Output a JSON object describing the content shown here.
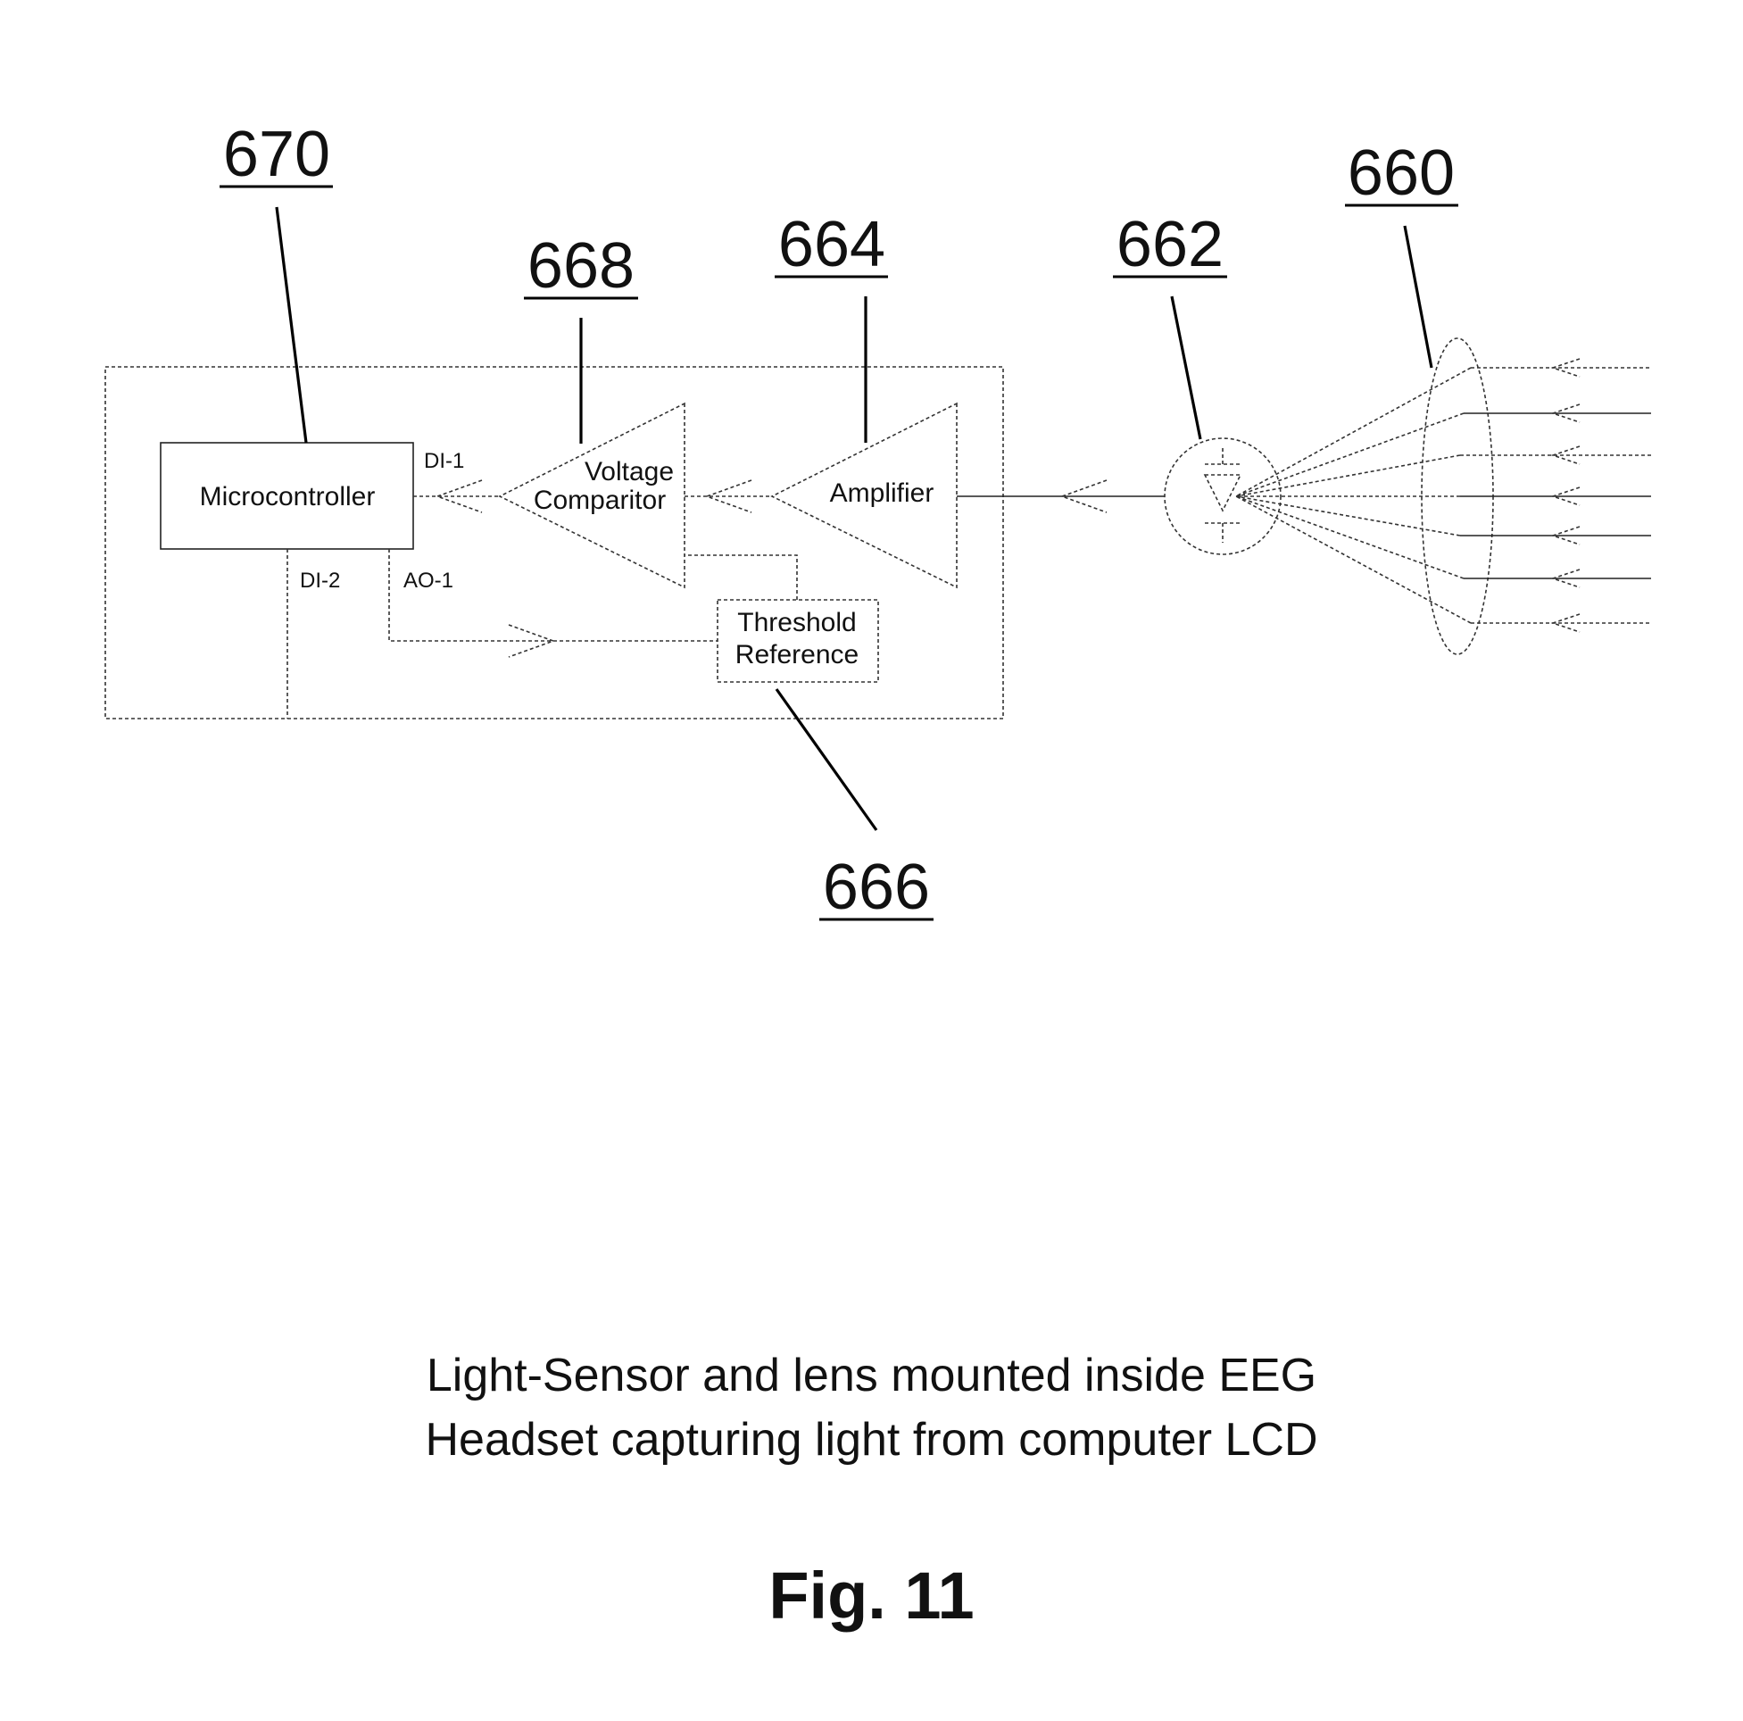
{
  "refs": {
    "microcontroller": "670",
    "comparator": "668",
    "amplifier": "664",
    "sensor": "662",
    "lens": "660",
    "threshold": "666"
  },
  "blocks": {
    "microcontroller": "Microcontroller",
    "comparator_line1": "Voltage",
    "comparator_line2": "Comparitor",
    "amplifier": "Amplifier",
    "threshold_line1": "Threshold",
    "threshold_line2": "Reference"
  },
  "pins": {
    "di1": "DI-1",
    "di2": "DI-2",
    "ao1": "AO-1"
  },
  "caption": {
    "line1": "Light-Sensor and lens mounted inside EEG",
    "line2": "Headset capturing light from computer LCD"
  },
  "figure_label": "Fig. 11"
}
